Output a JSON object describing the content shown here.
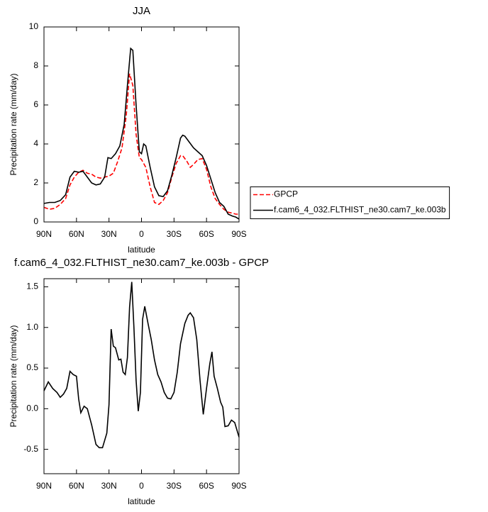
{
  "chart_data": [
    {
      "type": "line",
      "title": "JJA",
      "x_label": "latitude",
      "y_label": "Precipitation rate (mm/day)",
      "xlim": [
        90,
        -90
      ],
      "ylim": [
        0,
        10
      ],
      "xticks": [
        {
          "value": 90,
          "label": "90N"
        },
        {
          "value": 60,
          "label": "60N"
        },
        {
          "value": 30,
          "label": "30N"
        },
        0,
        {
          "value": -30,
          "label": "30S"
        },
        {
          "value": -60,
          "label": "60S"
        },
        {
          "value": -90,
          "label": "90S"
        }
      ],
      "yticks": [
        0,
        2,
        4,
        6,
        8,
        10
      ],
      "legend": "right",
      "series": [
        {
          "name": "GPCP",
          "color": "#ff0000",
          "line_style": "dashed",
          "x": [
            90,
            85,
            80,
            75,
            70,
            66,
            62,
            58,
            54,
            50,
            46,
            42,
            38,
            34,
            30,
            26,
            22,
            18,
            14,
            11,
            8,
            5,
            2,
            0,
            -4,
            -8,
            -12,
            -16,
            -20,
            -24,
            -28,
            -32,
            -36,
            -38,
            -42,
            -45,
            -48,
            -52,
            -56,
            -60,
            -64,
            -68,
            -72,
            -76,
            -80,
            -84,
            -87,
            -90
          ],
          "values": [
            0.75,
            0.65,
            0.7,
            0.9,
            1.2,
            1.9,
            2.3,
            2.55,
            2.65,
            2.5,
            2.45,
            2.3,
            2.25,
            2.3,
            2.35,
            2.5,
            3.1,
            3.8,
            5.5,
            7.6,
            7.0,
            4.5,
            3.3,
            3.2,
            2.8,
            1.8,
            1.0,
            0.9,
            1.1,
            1.5,
            2.3,
            3.0,
            3.4,
            3.4,
            3.1,
            2.8,
            2.95,
            3.2,
            3.25,
            2.7,
            1.8,
            1.2,
            0.9,
            0.65,
            0.5,
            0.45,
            0.4,
            0.4
          ]
        },
        {
          "name": "f.cam6_4_032.FLTHIST_ne30.cam7_ke.003b",
          "color": "#000000",
          "line_style": "solid",
          "x": [
            90,
            85,
            80,
            75,
            70,
            66,
            62,
            58,
            54,
            50,
            46,
            42,
            38,
            34,
            31,
            28,
            24,
            20,
            16,
            13,
            10,
            8,
            5,
            2,
            0,
            -2,
            -4,
            -8,
            -12,
            -16,
            -20,
            -24,
            -28,
            -32,
            -36,
            -38,
            -40,
            -44,
            -48,
            -52,
            -56,
            -60,
            -64,
            -68,
            -72,
            -76,
            -80,
            -84,
            -87,
            -90
          ],
          "values": [
            0.95,
            1.0,
            1.0,
            1.1,
            1.4,
            2.3,
            2.6,
            2.55,
            2.6,
            2.3,
            2.0,
            1.9,
            1.95,
            2.3,
            3.3,
            3.25,
            3.5,
            3.9,
            5.0,
            7.0,
            8.9,
            8.8,
            6.0,
            3.6,
            3.5,
            4.0,
            3.9,
            2.8,
            1.8,
            1.35,
            1.3,
            1.6,
            2.4,
            3.3,
            4.3,
            4.45,
            4.4,
            4.1,
            3.8,
            3.6,
            3.4,
            2.9,
            2.2,
            1.5,
            1.0,
            0.8,
            0.4,
            0.3,
            0.25,
            0.15
          ]
        }
      ]
    },
    {
      "type": "line",
      "title": "f.cam6_4_032.FLTHIST_ne30.cam7_ke.003b - GPCP",
      "x_label": "latitude",
      "y_label": "Precipitation rate (mm/day)",
      "xlim": [
        90,
        -90
      ],
      "ylim": [
        -0.8,
        1.6
      ],
      "xticks": [
        {
          "value": 90,
          "label": "90N"
        },
        {
          "value": 60,
          "label": "60N"
        },
        {
          "value": 30,
          "label": "30N"
        },
        0,
        {
          "value": -30,
          "label": "30S"
        },
        {
          "value": -60,
          "label": "60S"
        },
        {
          "value": -90,
          "label": "90S"
        }
      ],
      "yticks": [
        -0.5,
        {
          "value": 0,
          "label": "0.0"
        },
        0.5,
        {
          "value": 1,
          "label": "1.0"
        },
        1.5
      ],
      "series": [
        {
          "color": "#000000",
          "line_style": "solid",
          "x": [
            90,
            86,
            82,
            78,
            75,
            72,
            69,
            66,
            63,
            60,
            58,
            56,
            53,
            50,
            46,
            42,
            39,
            36,
            32,
            30,
            28,
            26,
            24,
            21,
            19,
            17,
            15,
            13,
            11,
            9,
            7,
            5,
            3,
            1,
            -1,
            -3,
            -6,
            -9,
            -12,
            -15,
            -18,
            -21,
            -24,
            -27,
            -30,
            -33,
            -36,
            -40,
            -43,
            -45,
            -48,
            -51,
            -54,
            -57,
            -60,
            -63,
            -65,
            -67,
            -70,
            -73,
            -75,
            -77,
            -80,
            -83,
            -86,
            -88,
            -90
          ],
          "values": [
            0.22,
            0.33,
            0.25,
            0.2,
            0.14,
            0.18,
            0.25,
            0.46,
            0.42,
            0.4,
            0.12,
            -0.05,
            0.03,
            0.0,
            -0.2,
            -0.44,
            -0.48,
            -0.48,
            -0.3,
            0.05,
            0.98,
            0.77,
            0.75,
            0.6,
            0.61,
            0.45,
            0.42,
            0.63,
            1.25,
            1.56,
            1.0,
            0.35,
            -0.03,
            0.2,
            1.1,
            1.26,
            1.05,
            0.85,
            0.6,
            0.42,
            0.33,
            0.2,
            0.13,
            0.12,
            0.2,
            0.45,
            0.8,
            1.05,
            1.15,
            1.18,
            1.12,
            0.85,
            0.35,
            -0.07,
            0.25,
            0.55,
            0.7,
            0.4,
            0.25,
            0.08,
            0.02,
            -0.22,
            -0.21,
            -0.14,
            -0.17,
            -0.26,
            -0.35
          ]
        }
      ]
    }
  ]
}
